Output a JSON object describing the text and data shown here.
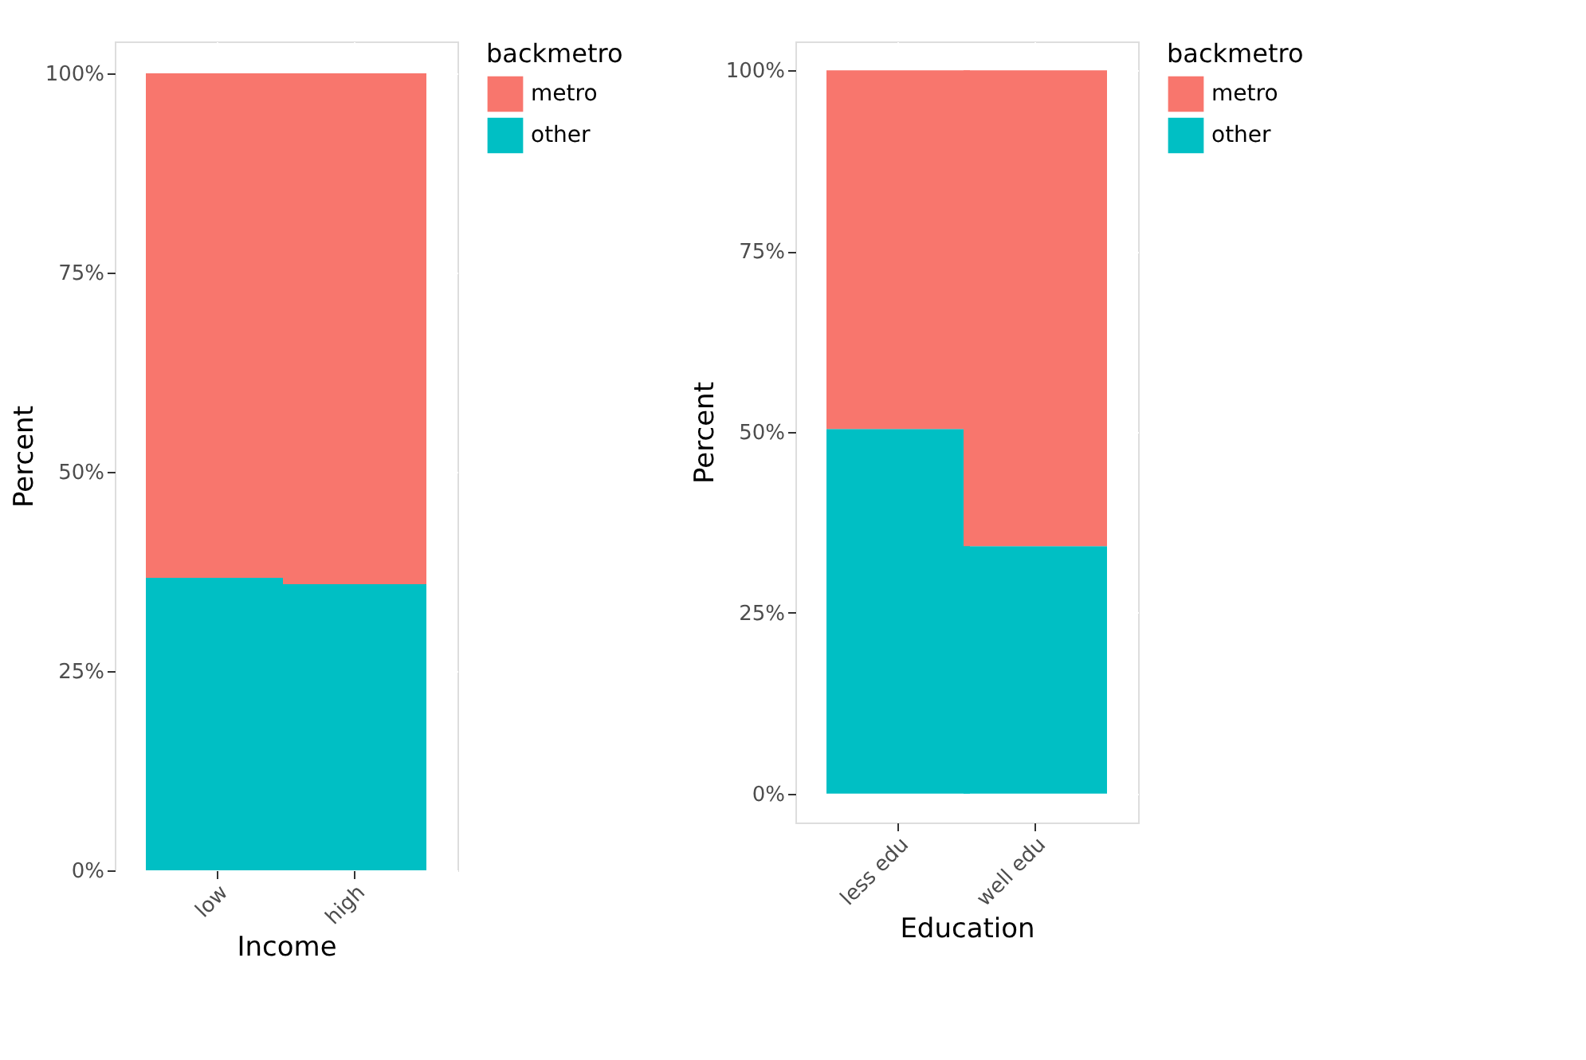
{
  "chart_data": [
    {
      "type": "bar",
      "stacked": true,
      "xlabel": "Income",
      "ylabel": "Percent",
      "legend_title": "backmetro",
      "categories": [
        "low",
        "high"
      ],
      "ylim": [
        0,
        104
      ],
      "yticks": [
        {
          "value": 0,
          "label": "0%"
        },
        {
          "value": 25,
          "label": "25%"
        },
        {
          "value": 50,
          "label": "50%"
        },
        {
          "value": 75,
          "label": "75%"
        },
        {
          "value": 100,
          "label": "100%"
        }
      ],
      "grid": true,
      "legend": "right",
      "series": [
        {
          "name": "other",
          "color": "#00bfc4",
          "values": [
            36.7,
            35.9
          ]
        },
        {
          "name": "metro",
          "color": "#f8766d",
          "values": [
            63.3,
            64.1
          ]
        }
      ]
    },
    {
      "type": "bar",
      "stacked": true,
      "xlabel": "Education",
      "ylabel": "Percent",
      "legend_title": "backmetro",
      "categories": [
        "less edu",
        "well edu"
      ],
      "ylim": [
        -4,
        104
      ],
      "yticks": [
        {
          "value": 0,
          "label": "0%"
        },
        {
          "value": 25,
          "label": "25%"
        },
        {
          "value": 50,
          "label": "50%"
        },
        {
          "value": 75,
          "label": "75%"
        },
        {
          "value": 100,
          "label": "100%"
        }
      ],
      "grid": true,
      "legend": "right",
      "series": [
        {
          "name": "other",
          "color": "#00bfc4",
          "values": [
            50.4,
            34.2
          ]
        },
        {
          "name": "metro",
          "color": "#f8766d",
          "values": [
            49.6,
            65.8
          ]
        }
      ]
    }
  ]
}
